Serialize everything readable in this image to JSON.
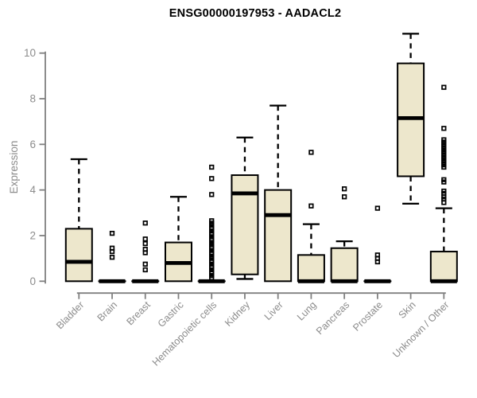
{
  "chart_data": {
    "type": "boxplot",
    "title": "ENSG00000197953 - AADACL2",
    "ylabel": "Expression",
    "xlabel": "",
    "ylim": [
      0,
      10
    ],
    "yticks": [
      0,
      2,
      4,
      6,
      8,
      10
    ],
    "grid": false,
    "legend": null,
    "categories": [
      "Bladder",
      "Brain",
      "Breast",
      "Gastric",
      "Hematopoietic cells",
      "Kidney",
      "Liver",
      "Lung",
      "Pancreas",
      "Prostate",
      "Skin",
      "Unknown / Other"
    ],
    "series": [
      {
        "name": "Bladder",
        "whislo": 0,
        "q1": 0,
        "med": 0.85,
        "q3": 2.3,
        "whishi": 5.35,
        "outliers": []
      },
      {
        "name": "Brain",
        "whislo": 0,
        "q1": 0,
        "med": 0,
        "q3": 0,
        "whishi": 0,
        "outliers": [
          2.1,
          1.45,
          1.3,
          1.05
        ]
      },
      {
        "name": "Breast",
        "whislo": 0,
        "q1": 0,
        "med": 0,
        "q3": 0,
        "whishi": 0,
        "outliers": [
          2.55,
          1.85,
          1.65,
          1.4,
          1.25,
          0.75,
          0.5
        ]
      },
      {
        "name": "Gastric",
        "whislo": 0,
        "q1": 0,
        "med": 0.8,
        "q3": 1.7,
        "whishi": 3.7,
        "outliers": []
      },
      {
        "name": "Hematopoietic cells",
        "whislo": 0,
        "q1": 0,
        "med": 0,
        "q3": 0,
        "whishi": 0,
        "outliers": [
          5.0,
          4.5,
          3.8,
          2.65,
          2.55,
          2.45,
          2.35,
          2.3,
          2.2,
          2.1,
          2.05,
          1.95,
          1.85,
          1.8,
          1.7,
          1.6,
          1.5,
          1.45,
          1.35,
          1.25,
          1.2,
          1.1,
          1.0,
          0.9,
          0.85,
          0.75,
          0.65,
          0.6,
          0.5,
          0.4,
          0.35,
          0.25,
          0.15
        ]
      },
      {
        "name": "Kidney",
        "whislo": 0.1,
        "q1": 0.3,
        "med": 3.85,
        "q3": 4.65,
        "whishi": 6.3,
        "outliers": []
      },
      {
        "name": "Liver",
        "whislo": 0,
        "q1": 0,
        "med": 2.9,
        "q3": 4.0,
        "whishi": 7.7,
        "outliers": []
      },
      {
        "name": "Lung",
        "whislo": 0,
        "q1": 0,
        "med": 0,
        "q3": 1.15,
        "whishi": 2.5,
        "outliers": [
          5.65,
          3.3
        ]
      },
      {
        "name": "Pancreas",
        "whislo": 0,
        "q1": 0,
        "med": 0,
        "q3": 1.45,
        "whishi": 1.75,
        "outliers": [
          4.05,
          3.7
        ]
      },
      {
        "name": "Prostate",
        "whislo": 0,
        "q1": 0,
        "med": 0,
        "q3": 0,
        "whishi": 0,
        "outliers": [
          3.2,
          1.15,
          1.0,
          0.85
        ]
      },
      {
        "name": "Skin",
        "whislo": 3.4,
        "q1": 4.6,
        "med": 7.15,
        "q3": 9.55,
        "whishi": 10.85,
        "outliers": []
      },
      {
        "name": "Unknown / Other",
        "whislo": 0,
        "q1": 0,
        "med": 0,
        "q3": 1.3,
        "whishi": 3.2,
        "outliers": [
          8.5,
          6.7,
          6.2,
          6.1,
          6.0,
          5.9,
          5.8,
          5.7,
          5.6,
          5.5,
          5.4,
          5.3,
          5.2,
          5.1,
          5.0,
          4.45,
          4.35,
          3.95,
          3.85,
          3.7,
          3.6,
          3.45
        ]
      }
    ],
    "colors": {
      "box_fill": "#EDE7CC",
      "box_border": "#000000",
      "median": "#000000",
      "whisker": "#000000",
      "outlier": "#000000",
      "axis": "#808080",
      "tick_label": "#8c8c8c",
      "title": "#000000",
      "background": "#ffffff"
    }
  }
}
